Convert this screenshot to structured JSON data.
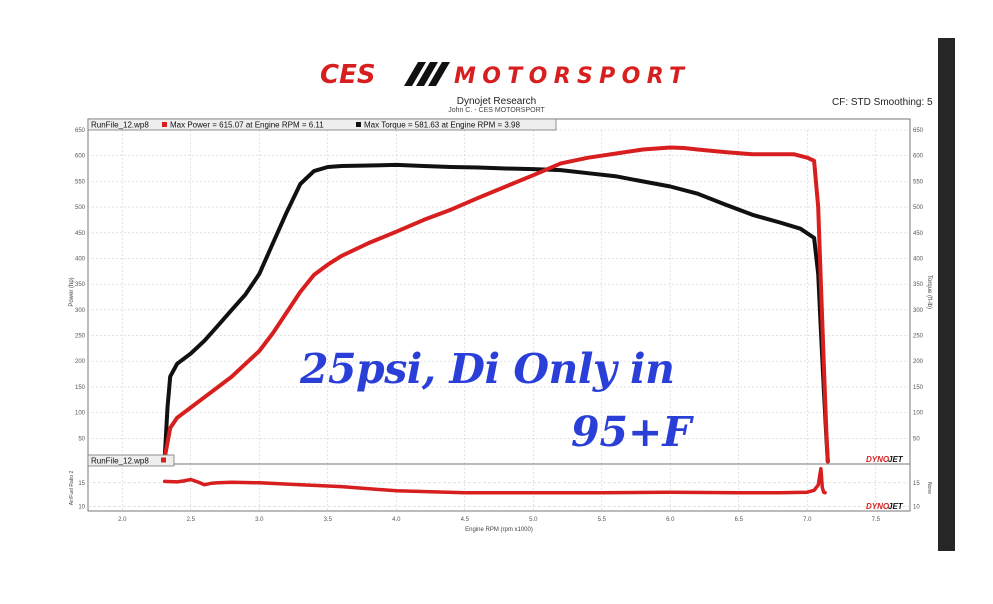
{
  "header": {
    "logo_text_left": "CES",
    "logo_text_right": "MOTORSPORT",
    "title": "Dynojet Research",
    "subtitle": "John C. - CES MOTORSPORT",
    "correction": "CF: STD Smoothing: 5"
  },
  "annotation": {
    "line1": "25psi, Di Only in",
    "line2": "95+F"
  },
  "brand": {
    "left": "DYNO",
    "right": "JET"
  },
  "colors": {
    "power": "#d71f1f",
    "torque": "#111111",
    "afr": "#d71f1f",
    "annotation": "#2a3fd8",
    "logo": "#d71f1f"
  },
  "chart_data": [
    {
      "type": "line",
      "legend": {
        "file": "RunFile_12.wp8",
        "entries": [
          "Max Power = 615.07 at Engine RPM = 6.11",
          "Max Torque = 581.63 at Engine RPM = 3.98"
        ],
        "placement": "top-left"
      },
      "xlim": [
        1.75,
        7.75
      ],
      "ylim": [
        0,
        650
      ],
      "y_ticks": [
        50,
        100,
        150,
        200,
        250,
        300,
        350,
        400,
        450,
        500,
        550,
        600,
        650
      ],
      "ylabel_left": "Power (hp)",
      "ylabel_right": "Torque (ft-lb)",
      "grid": true,
      "series": [
        {
          "name": "Max Power",
          "color": "#d71f1f",
          "x": [
            2.31,
            2.35,
            2.4,
            2.5,
            2.6,
            2.7,
            2.8,
            2.9,
            3.0,
            3.1,
            3.2,
            3.3,
            3.4,
            3.5,
            3.6,
            3.8,
            4.0,
            4.2,
            4.4,
            4.6,
            4.8,
            5.0,
            5.2,
            5.4,
            5.6,
            5.8,
            6.0,
            6.1,
            6.2,
            6.4,
            6.6,
            6.8,
            6.9,
            7.0,
            7.05,
            7.08,
            7.1,
            7.12,
            7.14,
            7.15
          ],
          "y": [
            12,
            70,
            90,
            110,
            130,
            150,
            170,
            195,
            220,
            255,
            295,
            335,
            368,
            388,
            405,
            430,
            452,
            475,
            495,
            518,
            540,
            562,
            585,
            596,
            604,
            612,
            616,
            615,
            612,
            607,
            603,
            603,
            603,
            596,
            590,
            500,
            350,
            200,
            60,
            5
          ]
        },
        {
          "name": "Max Torque",
          "color": "#111111",
          "x": [
            2.31,
            2.33,
            2.35,
            2.4,
            2.5,
            2.6,
            2.7,
            2.8,
            2.9,
            3.0,
            3.1,
            3.2,
            3.3,
            3.4,
            3.5,
            3.6,
            3.8,
            4.0,
            4.2,
            4.4,
            4.6,
            4.8,
            5.0,
            5.2,
            5.4,
            5.6,
            5.8,
            6.0,
            6.2,
            6.4,
            6.6,
            6.8,
            6.95,
            7.05,
            7.08,
            7.1,
            7.12,
            7.14,
            7.15
          ],
          "y": [
            12,
            110,
            170,
            195,
            215,
            240,
            270,
            300,
            330,
            370,
            430,
            490,
            545,
            570,
            578,
            580,
            581,
            582,
            580,
            578,
            577,
            575,
            574,
            572,
            566,
            560,
            550,
            540,
            526,
            505,
            485,
            470,
            458,
            440,
            370,
            260,
            150,
            50,
            5
          ]
        }
      ]
    },
    {
      "type": "line",
      "legend": {
        "file": "RunFile_12.wp8",
        "placement": "top-left"
      },
      "xlabel": "Engine RPM (rpm x1000)",
      "ylabel_left": "Air/Fuel Ratio 2",
      "ylabel_right": "None",
      "x_ticks": [
        2.0,
        2.5,
        3.0,
        3.5,
        4.0,
        4.5,
        5.0,
        5.5,
        6.0,
        6.5,
        7.0,
        7.5
      ],
      "xlim": [
        1.75,
        7.75
      ],
      "ylim": [
        9,
        19
      ],
      "y_ticks": [
        10,
        15
      ],
      "grid": true,
      "series": [
        {
          "name": "Air/Fuel Ratio 2",
          "color": "#d71f1f",
          "x": [
            2.31,
            2.4,
            2.45,
            2.5,
            2.55,
            2.6,
            2.65,
            2.7,
            2.8,
            3.0,
            3.3,
            3.6,
            4.0,
            4.5,
            5.0,
            5.5,
            6.0,
            6.5,
            6.8,
            7.0,
            7.05,
            7.08,
            7.1,
            7.11,
            7.12,
            7.13
          ],
          "y": [
            15.3,
            15.2,
            15.4,
            15.7,
            15.2,
            14.6,
            14.9,
            15.0,
            15.1,
            15.0,
            14.6,
            14.2,
            13.3,
            12.9,
            12.9,
            12.9,
            13.0,
            12.9,
            12.9,
            13.0,
            13.4,
            14.5,
            18.0,
            14.0,
            13.0,
            12.9
          ]
        }
      ]
    }
  ]
}
